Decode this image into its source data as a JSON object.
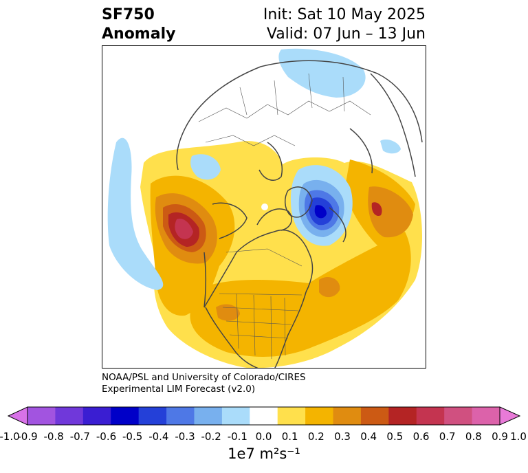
{
  "title": {
    "left_line1": "SF750",
    "left_line2": "Anomaly",
    "right_line1": "Init: Sat 10 May 2025",
    "right_line2": "Valid: 07 Jun – 13 Jun"
  },
  "credit": {
    "line1": "NOAA/PSL and University of Colorado/CIRES",
    "line2": "Experimental LIM Forecast (v2.0)"
  },
  "colorbar": {
    "units": "1e7 m²s⁻¹",
    "ticks": [
      "-1.0",
      "-0.9",
      "-0.8",
      "-0.7",
      "-0.6",
      "-0.5",
      "-0.4",
      "-0.3",
      "-0.2",
      "-0.1",
      "0.0",
      "0.1",
      "0.2",
      "0.3",
      "0.4",
      "0.5",
      "0.6",
      "0.7",
      "0.8",
      "0.9",
      "1.0"
    ],
    "colors": [
      "#d872e8",
      "#a254e0",
      "#7038da",
      "#3a1ed2",
      "#0000c8",
      "#2440d8",
      "#4e78e6",
      "#78b0ee",
      "#aadcfa",
      "#ffffff",
      "#ffe04c",
      "#f4b400",
      "#e08c10",
      "#cc5a14",
      "#b42424",
      "#c43450",
      "#d05080",
      "#dc62aa",
      "#e87ad8"
    ]
  },
  "map": {
    "projection": "north-polar-stereographic",
    "features": [
      "coastlines",
      "country-borders",
      "us-state-borders"
    ]
  }
}
